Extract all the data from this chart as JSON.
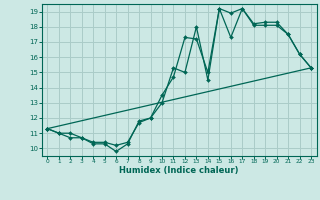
{
  "title": "",
  "xlabel": "Humidex (Indice chaleur)",
  "bg_color": "#cce8e4",
  "grid_color": "#aaccc8",
  "line_color": "#006655",
  "xlim": [
    -0.5,
    23.5
  ],
  "ylim": [
    9.5,
    19.5
  ],
  "xticks": [
    0,
    1,
    2,
    3,
    4,
    5,
    6,
    7,
    8,
    9,
    10,
    11,
    12,
    13,
    14,
    15,
    16,
    17,
    18,
    19,
    20,
    21,
    22,
    23
  ],
  "yticks": [
    10,
    11,
    12,
    13,
    14,
    15,
    16,
    17,
    18,
    19
  ],
  "line1_x": [
    0,
    1,
    2,
    3,
    4,
    5,
    6,
    7,
    8,
    9,
    10,
    11,
    12,
    13,
    14,
    15,
    16,
    17,
    18,
    19,
    20,
    21,
    22,
    23
  ],
  "line1_y": [
    11.3,
    11.0,
    10.7,
    10.7,
    10.3,
    10.3,
    9.8,
    10.3,
    11.8,
    12.0,
    13.0,
    15.3,
    15.0,
    18.0,
    14.5,
    19.2,
    18.9,
    19.2,
    18.2,
    18.3,
    18.3,
    17.5,
    16.2,
    15.3
  ],
  "line2_x": [
    0,
    1,
    2,
    3,
    4,
    5,
    6,
    7,
    8,
    9,
    10,
    11,
    12,
    13,
    14,
    15,
    16,
    17,
    18,
    19,
    20,
    21,
    22,
    23
  ],
  "line2_y": [
    11.3,
    11.0,
    11.0,
    10.7,
    10.4,
    10.4,
    10.2,
    10.4,
    11.7,
    12.0,
    13.5,
    14.7,
    17.3,
    17.2,
    15.0,
    19.2,
    17.3,
    19.2,
    18.1,
    18.1,
    18.1,
    17.5,
    16.2,
    15.3
  ],
  "line3_x": [
    0,
    23
  ],
  "line3_y": [
    11.3,
    15.3
  ]
}
